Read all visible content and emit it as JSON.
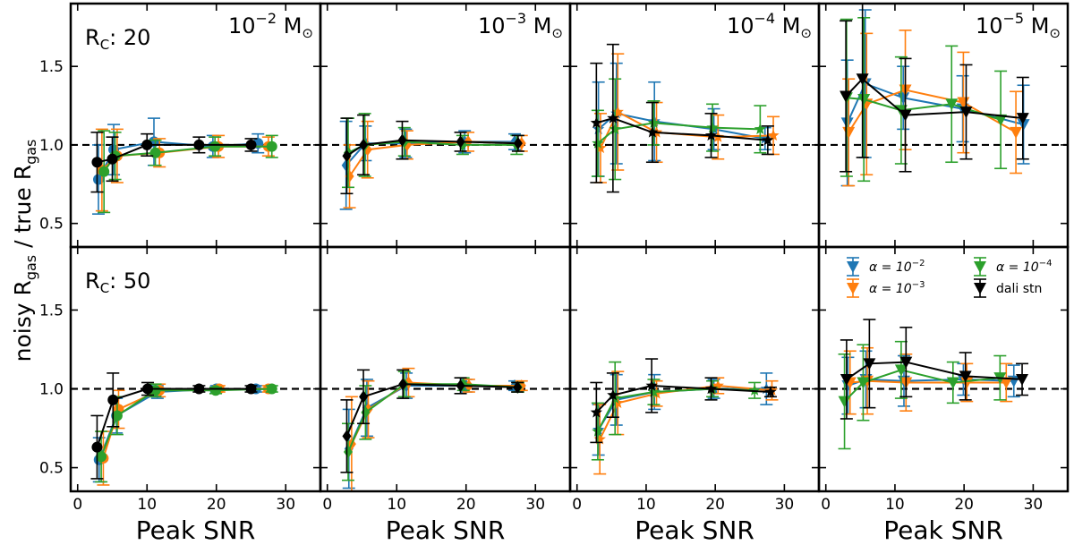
{
  "chart_data": {
    "type": "line",
    "ylabel_parts": [
      "noisy R",
      "gas",
      " / true R",
      "gas"
    ],
    "xlabel": "Peak SNR",
    "xlim": [
      -1,
      35
    ],
    "ylim": [
      0.35,
      1.9
    ],
    "x_ticks": [
      0,
      10,
      20,
      30
    ],
    "y_ticks": [
      0.5,
      1.0,
      1.5
    ],
    "y_tick_labels": [
      "0.5",
      "1.0",
      "1.5"
    ],
    "reference_line": 1.0,
    "colors": {
      "alpha_1e-2": "#1f77b4",
      "alpha_1e-3": "#ff7f0e",
      "alpha_1e-4": "#2ca02c",
      "dali_stn": "#000000"
    },
    "legend": {
      "placement": "upper-right of bottom-right panel",
      "entries": [
        {
          "key": "alpha_1e-2",
          "label_base": "α = 10",
          "label_exp": "−2"
        },
        {
          "key": "alpha_1e-4",
          "label_base": "α = 10",
          "label_exp": "−4"
        },
        {
          "key": "alpha_1e-3",
          "label_base": "α = 10",
          "label_exp": "−3"
        },
        {
          "key": "dali_stn",
          "label_base": "dali stn",
          "label_exp": ""
        }
      ]
    },
    "row_labels": [
      {
        "main": "R",
        "sub": "C",
        "tail": ": 20"
      },
      {
        "main": "R",
        "sub": "C",
        "tail": ": 50"
      }
    ],
    "column_titles": [
      {
        "base": "10",
        "exp": "−2",
        "unit": "M",
        "unit_sym": "⊙"
      },
      {
        "base": "10",
        "exp": "−3",
        "unit": "M",
        "unit_sym": "⊙"
      },
      {
        "base": "10",
        "exp": "−4",
        "unit": "M",
        "unit_sym": "⊙"
      },
      {
        "base": "10",
        "exp": "−5",
        "unit": "M",
        "unit_sym": "⊙"
      }
    ],
    "panels": [
      {
        "row": 0,
        "col": 0,
        "marker": "circle",
        "series": [
          {
            "key": "alpha_1e-2",
            "x": [
              3,
              5.2,
              11,
              19.5,
              26
            ],
            "y": [
              0.78,
              0.97,
              1.02,
              0.99,
              1.01
            ],
            "err": [
              0.22,
              0.16,
              0.15,
              0.07,
              0.06
            ]
          },
          {
            "key": "alpha_1e-3",
            "x": [
              3.5,
              5.7,
              11.8,
              20.3,
              27.5
            ],
            "y": [
              0.84,
              0.93,
              0.95,
              0.99,
              0.99
            ],
            "err": [
              0.26,
              0.17,
              0.09,
              0.07,
              0.06
            ]
          },
          {
            "key": "alpha_1e-4",
            "x": [
              3.8,
              5.4,
              11.2,
              19.8,
              28
            ],
            "y": [
              0.83,
              0.93,
              0.95,
              0.99,
              0.99
            ],
            "err": [
              0.26,
              0.15,
              0.08,
              0.06,
              0.07
            ]
          },
          {
            "key": "dali_stn",
            "x": [
              2.8,
              5,
              10,
              17.5,
              25
            ],
            "y": [
              0.89,
              0.91,
              1.0,
              1.0,
              1.0
            ],
            "err": [
              0.19,
              0.14,
              0.07,
              0.05,
              0.04
            ]
          }
        ]
      },
      {
        "row": 0,
        "col": 1,
        "marker": "diamond",
        "series": [
          {
            "key": "alpha_1e-2",
            "x": [
              2.7,
              5.5,
              11.3,
              19.8,
              27
            ],
            "y": [
              0.87,
              1.01,
              1.01,
              1.02,
              1.02
            ],
            "err": [
              0.28,
              0.11,
              0.09,
              0.07,
              0.05
            ]
          },
          {
            "key": "alpha_1e-3",
            "x": [
              3.2,
              5.8,
              11.5,
              20.3,
              28
            ],
            "y": [
              0.8,
              0.97,
              1.0,
              1.02,
              1.01
            ],
            "err": [
              0.2,
              0.18,
              0.09,
              0.06,
              0.05
            ]
          },
          {
            "key": "alpha_1e-4",
            "x": [
              3,
              5.4,
              11.1,
              19.5,
              27.3
            ],
            "y": [
              0.95,
              1.0,
              1.02,
              1.0,
              1.0
            ],
            "err": [
              0.22,
              0.2,
              0.09,
              0.06,
              0.06
            ]
          },
          {
            "key": "dali_stn",
            "x": [
              2.8,
              5.2,
              10.8,
              19.2,
              27.5
            ],
            "y": [
              0.93,
              1.0,
              1.03,
              1.02,
              1.01
            ],
            "err": [
              0.24,
              0.19,
              0.12,
              0.06,
              0.05
            ]
          }
        ]
      },
      {
        "row": 1,
        "col": 0,
        "marker": "circle",
        "series": [
          {
            "key": "alpha_1e-2",
            "x": [
              3.1,
              5.6,
              11.5,
              20,
              25.7
            ],
            "y": [
              0.55,
              0.83,
              0.98,
              1.0,
              1.0
            ],
            "err": [
              0.14,
              0.11,
              0.04,
              0.02,
              0.02
            ]
          },
          {
            "key": "alpha_1e-3",
            "x": [
              3.7,
              5.9,
              11.8,
              20.4,
              27.5
            ],
            "y": [
              0.56,
              0.87,
              0.99,
              1.0,
              1.0
            ],
            "err": [
              0.17,
              0.12,
              0.04,
              0.02,
              0.02
            ]
          },
          {
            "key": "alpha_1e-4",
            "x": [
              3.4,
              5.7,
              11.2,
              19.9,
              28
            ],
            "y": [
              0.57,
              0.83,
              0.99,
              0.99,
              1.0
            ],
            "err": [
              0.16,
              0.12,
              0.04,
              0.02,
              0.02
            ]
          },
          {
            "key": "dali_stn",
            "x": [
              2.8,
              5.1,
              10.1,
              17.5,
              25
            ],
            "y": [
              0.63,
              0.93,
              1.0,
              1.0,
              1.0
            ],
            "err": [
              0.2,
              0.17,
              0.04,
              0.02,
              0.02
            ]
          }
        ]
      },
      {
        "row": 1,
        "col": 1,
        "marker": "diamond",
        "series": [
          {
            "key": "alpha_1e-2",
            "x": [
              3.1,
              5.7,
              11.4,
              20,
              27
            ],
            "y": [
              0.62,
              0.88,
              1.02,
              1.02,
              1.02
            ],
            "err": [
              0.25,
              0.18,
              0.08,
              0.04,
              0.03
            ]
          },
          {
            "key": "alpha_1e-3",
            "x": [
              3.5,
              5.9,
              11.7,
              20.4,
              28
            ],
            "y": [
              0.65,
              0.87,
              1.04,
              1.02,
              1.02
            ],
            "err": [
              0.3,
              0.18,
              0.09,
              0.04,
              0.03
            ]
          },
          {
            "key": "alpha_1e-4",
            "x": [
              3,
              5.5,
              11.1,
              19.6,
              27.5
            ],
            "y": [
              0.6,
              0.85,
              1.03,
              1.03,
              1.01
            ],
            "err": [
              0.18,
              0.17,
              0.08,
              0.04,
              0.03
            ]
          },
          {
            "key": "dali_stn",
            "x": [
              2.8,
              5.2,
              10.9,
              19.2,
              27.4
            ],
            "y": [
              0.7,
              0.95,
              1.03,
              1.02,
              1.01
            ],
            "err": [
              0.23,
              0.17,
              0.09,
              0.05,
              0.03
            ]
          }
        ]
      },
      {
        "row": 0,
        "col": 2,
        "marker": "star",
        "series": [
          {
            "key": "alpha_1e-2",
            "x": [
              3.1,
              5.7,
              11.2,
              19.8,
              27.2
            ],
            "y": [
              1.1,
              1.2,
              1.15,
              1.1,
              1.04
            ],
            "err": [
              0.3,
              0.32,
              0.25,
              0.13,
              0.07
            ]
          },
          {
            "key": "alpha_1e-3",
            "x": [
              3.4,
              5.9,
              11.5,
              20.4,
              28.4
            ],
            "y": [
              0.98,
              1.21,
              1.08,
              1.05,
              1.06
            ],
            "err": [
              0.22,
              0.37,
              0.19,
              0.14,
              0.12
            ]
          },
          {
            "key": "alpha_1e-4",
            "x": [
              3,
              5.5,
              11.1,
              19.6,
              26.5
            ],
            "y": [
              1.01,
              1.1,
              1.14,
              1.11,
              1.1
            ],
            "err": [
              0.21,
              0.32,
              0.14,
              0.15,
              0.15
            ]
          },
          {
            "key": "dali_stn",
            "x": [
              2.8,
              5.2,
              10.9,
              19.4,
              27.6
            ],
            "y": [
              1.14,
              1.17,
              1.08,
              1.06,
              1.03
            ],
            "err": [
              0.38,
              0.47,
              0.19,
              0.14,
              0.09
            ]
          }
        ]
      },
      {
        "row": 0,
        "col": 3,
        "marker": "triangle",
        "series": [
          {
            "key": "alpha_1e-2",
            "x": [
              3.1,
              5.7,
              11.2,
              19.8,
              28.6
            ],
            "y": [
              1.14,
              1.39,
              1.3,
              1.23,
              1.13
            ],
            "err": [
              0.4,
              0.47,
              0.2,
              0.21,
              0.25
            ]
          },
          {
            "key": "alpha_1e-3",
            "x": [
              3.3,
              5.9,
              11.5,
              19.9,
              27.5
            ],
            "y": [
              1.08,
              1.26,
              1.35,
              1.27,
              1.08
            ],
            "err": [
              0.34,
              0.45,
              0.38,
              0.32,
              0.26
            ]
          },
          {
            "key": "alpha_1e-4",
            "x": [
              3,
              5.5,
              10.9,
              18.2,
              25.3
            ],
            "y": [
              1.3,
              1.29,
              1.22,
              1.26,
              1.16
            ],
            "err": [
              0.5,
              0.52,
              0.34,
              0.37,
              0.31
            ]
          },
          {
            "key": "dali_stn",
            "x": [
              2.9,
              5.3,
              11.5,
              20.3,
              28.5
            ],
            "y": [
              1.31,
              1.42,
              1.19,
              1.21,
              1.17
            ],
            "err": [
              0.48,
              0.5,
              0.36,
              0.3,
              0.26
            ]
          }
        ]
      },
      {
        "row": 1,
        "col": 2,
        "marker": "star",
        "series": [
          {
            "key": "alpha_1e-2",
            "x": [
              3.1,
              5.7,
              11.2,
              19.8,
              27.4
            ],
            "y": [
              0.74,
              0.93,
              0.98,
              1.0,
              1.0
            ],
            "err": [
              0.16,
              0.16,
              0.11,
              0.06,
              0.1
            ]
          },
          {
            "key": "alpha_1e-3",
            "x": [
              3.3,
              5.9,
              11.5,
              20.4,
              28.2
            ],
            "y": [
              0.68,
              0.91,
              0.97,
              1.02,
              0.99
            ],
            "err": [
              0.22,
              0.2,
              0.08,
              0.05,
              0.06
            ]
          },
          {
            "key": "alpha_1e-4",
            "x": [
              3,
              5.5,
              11.1,
              19.6,
              25.7
            ],
            "y": [
              0.73,
              0.94,
              0.98,
              1.0,
              0.99
            ],
            "err": [
              0.18,
              0.23,
              0.08,
              0.05,
              0.05
            ]
          },
          {
            "key": "dali_stn",
            "x": [
              2.8,
              5.2,
              10.8,
              19.4,
              28
            ],
            "y": [
              0.85,
              0.96,
              1.02,
              1.0,
              0.98
            ],
            "err": [
              0.19,
              0.14,
              0.17,
              0.07,
              0.03
            ]
          }
        ]
      },
      {
        "row": 1,
        "col": 3,
        "marker": "triangle",
        "series": [
          {
            "key": "alpha_1e-2",
            "x": [
              3.2,
              5.8,
              11.3,
              19.9,
              27.2
            ],
            "y": [
              1.02,
              1.06,
              1.05,
              1.06,
              1.05
            ],
            "err": [
              0.18,
              0.18,
              0.16,
              0.1,
              0.1
            ]
          },
          {
            "key": "alpha_1e-3",
            "x": [
              3.5,
              6,
              11.6,
              20.4,
              26.1
            ],
            "y": [
              1.04,
              1.05,
              1.04,
              1.04,
              1.04
            ],
            "err": [
              0.2,
              0.21,
              0.18,
              0.12,
              0.12
            ]
          },
          {
            "key": "alpha_1e-4",
            "x": [
              2.7,
              5.4,
              10.9,
              18.4,
              25.2
            ],
            "y": [
              0.92,
              1.04,
              1.12,
              1.04,
              1.07
            ],
            "err": [
              0.3,
              0.24,
              0.18,
              0.13,
              0.14
            ]
          },
          {
            "key": "dali_stn",
            "x": [
              3,
              6.3,
              11.6,
              20.2,
              28.4
            ],
            "y": [
              1.06,
              1.16,
              1.17,
              1.08,
              1.06
            ],
            "err": [
              0.25,
              0.28,
              0.22,
              0.15,
              0.1
            ]
          }
        ]
      }
    ]
  }
}
